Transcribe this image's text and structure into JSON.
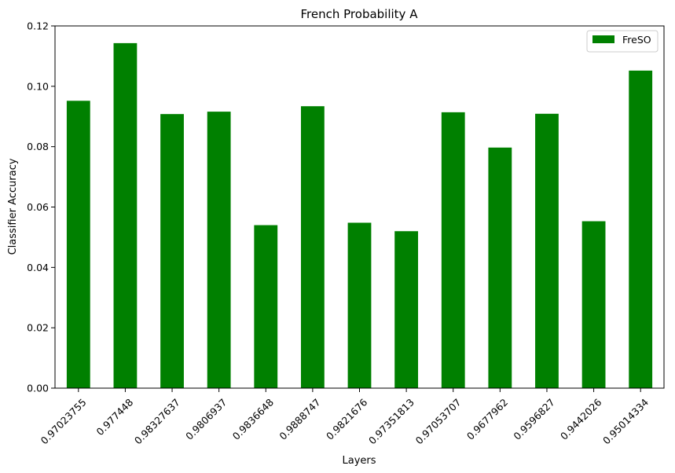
{
  "chart_data": {
    "type": "bar",
    "title": "French Probability A",
    "xlabel": "Layers",
    "ylabel": "Classifier Accuracy",
    "categories": [
      "0.97023755",
      "0.977448",
      "0.98327637",
      "0.9806937",
      "0.9836648",
      "0.9888747",
      "0.9821676",
      "0.97351813",
      "0.97053707",
      "0.9677962",
      "0.9596827",
      "0.9442026",
      "0.95014334"
    ],
    "series": [
      {
        "name": "FreSO",
        "color": "#008000",
        "values": [
          0.0952,
          0.1143,
          0.0908,
          0.0916,
          0.054,
          0.0934,
          0.0548,
          0.052,
          0.0914,
          0.0797,
          0.0909,
          0.0553,
          0.1052
        ]
      }
    ],
    "ylim": [
      0,
      0.12
    ],
    "yticks": [
      "0.00",
      "0.02",
      "0.04",
      "0.06",
      "0.08",
      "0.10",
      "0.12"
    ],
    "grid": false,
    "legend_position": "top-right"
  }
}
